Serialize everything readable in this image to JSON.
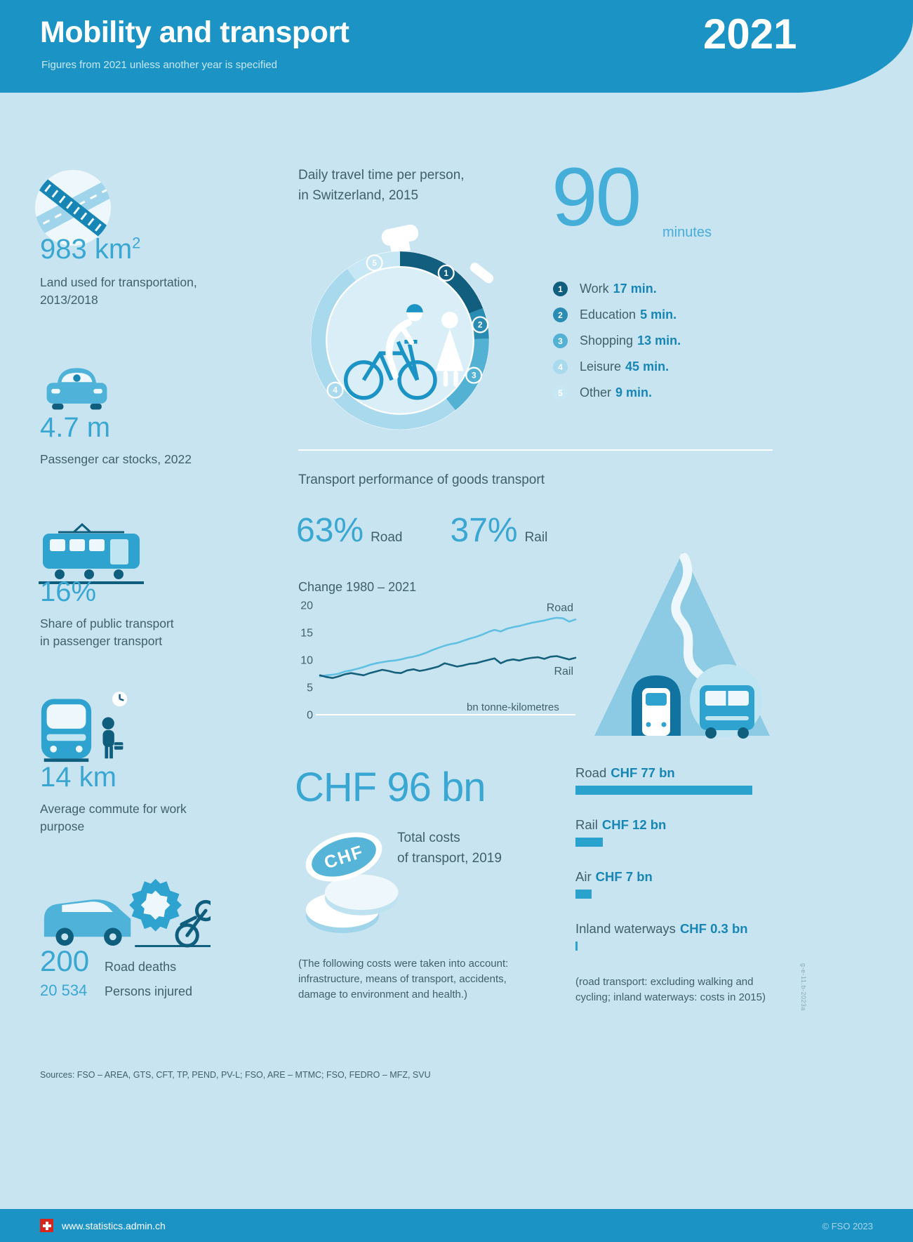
{
  "header": {
    "title": "Mobility and transport",
    "subtitle": "Figures from 2021 unless another year is specified",
    "year": "2021"
  },
  "colors": {
    "brand_blue": "#1b93c5",
    "number_blue": "#3aa7d3",
    "value_blue": "#1786b5",
    "text_dark": "#3f5f6b",
    "background": "#c9e4f1",
    "bar_blue": "#2aa2ce",
    "road_line": "#5fc0e1",
    "rail_line": "#15607b"
  },
  "stats": {
    "land": {
      "value": "983 km",
      "sup": "2",
      "label": "Land used for transportation,\n2013/2018"
    },
    "cars": {
      "value": "4.7 m",
      "label": "Passenger car stocks, 2022"
    },
    "pt_share": {
      "value": "16%",
      "label": "Share of public transport\nin passenger transport"
    },
    "commute": {
      "value": "14 km",
      "label": "Average commute for work\npurpose"
    },
    "accidents": {
      "deaths_value": "200",
      "deaths_label": "Road deaths",
      "injured_value": "20 534",
      "injured_label": "Persons injured"
    }
  },
  "travel_time": {
    "heading": "Daily travel time per person,\nin Switzerland, 2015",
    "total": "90",
    "unit": "minutes",
    "legend": [
      {
        "n": "1",
        "label": "Work",
        "value": "17 min.",
        "minutes": 17,
        "color": "#115e7e"
      },
      {
        "n": "2",
        "label": "Education",
        "value": "5 min.",
        "minutes": 5,
        "color": "#2b8cb3"
      },
      {
        "n": "3",
        "label": "Shopping",
        "value": "13 min.",
        "minutes": 13,
        "color": "#53b1d4"
      },
      {
        "n": "4",
        "label": "Leisure",
        "value": "45 min.",
        "minutes": 45,
        "color": "#a9d9ec"
      },
      {
        "n": "5",
        "label": "Other",
        "value": "9 min.",
        "minutes": 9,
        "color": "#c6e7f3"
      }
    ]
  },
  "goods": {
    "heading": "Transport performance of goods transport",
    "shares": [
      {
        "value": "63%",
        "label": "Road"
      },
      {
        "value": "37%",
        "label": "Rail"
      }
    ],
    "chart_title": "Change 1980 – 2021"
  },
  "chart_data": {
    "type": "line",
    "title": "Change 1980 – 2021",
    "x_start": 1980,
    "x_end": 2021,
    "ylim": [
      0,
      20
    ],
    "yticks": [
      20,
      15,
      10,
      5,
      0
    ],
    "unit_label": "bn tonne-kilometres",
    "legend_position": "inline-right",
    "grid": false,
    "series": [
      {
        "name": "Road",
        "color": "#5fc0e1",
        "values": [
          7.0,
          7.2,
          7.3,
          7.5,
          7.9,
          8.1,
          8.4,
          8.7,
          9.1,
          9.4,
          9.6,
          9.8,
          9.9,
          10.1,
          10.4,
          10.6,
          10.9,
          11.3,
          11.8,
          12.2,
          12.6,
          12.9,
          13.1,
          13.5,
          13.9,
          14.2,
          14.6,
          15.1,
          15.5,
          15.2,
          15.7,
          16.0,
          16.2,
          16.5,
          16.8,
          17.0,
          17.2,
          17.5,
          17.7,
          17.6,
          17.0,
          17.4
        ]
      },
      {
        "name": "Rail",
        "color": "#15607b",
        "values": [
          7.2,
          6.9,
          6.7,
          7.0,
          7.4,
          7.6,
          7.4,
          7.2,
          7.6,
          7.9,
          8.2,
          8.0,
          7.7,
          7.6,
          8.1,
          8.3,
          8.0,
          8.2,
          8.5,
          8.8,
          9.4,
          9.1,
          8.8,
          9.0,
          9.3,
          9.4,
          9.7,
          10.0,
          10.3,
          9.4,
          9.9,
          10.1,
          9.9,
          10.2,
          10.4,
          10.5,
          10.2,
          10.6,
          10.7,
          10.4,
          10.1,
          10.4
        ]
      }
    ]
  },
  "costs": {
    "total": "CHF 96 bn",
    "total_label": "Total costs\nof transport, 2019",
    "coin_text": "CHF",
    "max_amount": 77,
    "bars": [
      {
        "label": "Road",
        "value": "CHF 77 bn",
        "amount": 77
      },
      {
        "label": "Rail",
        "value": "CHF 12 bn",
        "amount": 12
      },
      {
        "label": "Air",
        "value": "CHF 7 bn",
        "amount": 7
      },
      {
        "label": "Inland waterways",
        "value": "CHF 0.3 bn",
        "amount": 0.3
      }
    ],
    "note_included": "(The following costs were taken into account: infrastructure, means of transport, accidents, damage to environment and health.)",
    "note_exclusions": "(road transport: excluding walking and cycling; inland waterways: costs in 2015)"
  },
  "footer": {
    "sources": "Sources: FSO – AREA, GTS, CFT, TP, PEND, PV-L; FSO, ARE – MTMC; FSO, FEDRO – MFZ, SVU",
    "code": "g-e-11.b-2023a",
    "url": "www.statistics.admin.ch",
    "copyright": "© FSO 2023"
  }
}
